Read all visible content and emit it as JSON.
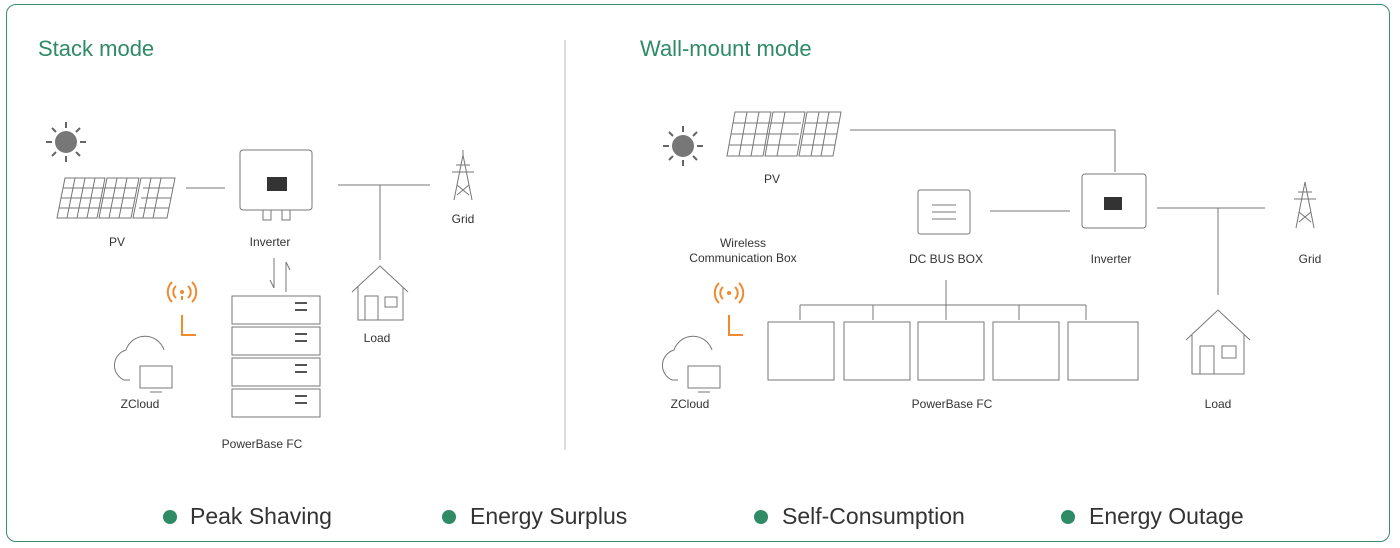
{
  "panels": [
    {
      "title": "Stack mode",
      "labels": {
        "pv": "PV",
        "inverter": "Inverter",
        "grid": "Grid",
        "load": "Load",
        "cloud": "ZCloud",
        "battery": "PowerBase FC"
      }
    },
    {
      "title": "Wall-mount mode",
      "labels": {
        "pv": "PV",
        "wireless": "Wireless Communication Box",
        "dcbus": "DC BUS BOX",
        "inverter": "Inverter",
        "grid": "Grid",
        "load": "Load",
        "cloud": "ZCloud",
        "battery": "PowerBase FC"
      }
    }
  ],
  "features": [
    "Peak Shaving",
    "Energy Surplus",
    "Self-Consumption",
    "Energy Outage"
  ]
}
